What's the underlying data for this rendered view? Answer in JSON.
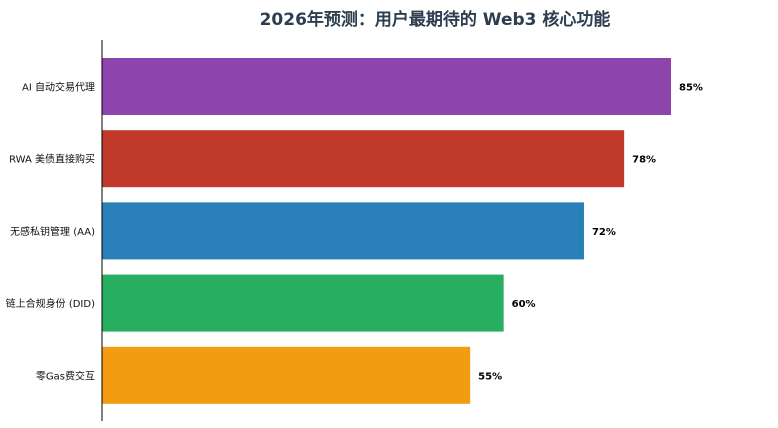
{
  "chart_data": {
    "type": "bar",
    "orientation": "horizontal",
    "title": "2026年预测：用户最期待的 Web3 核心功能",
    "categories": [
      "AI 自动交易代理",
      "RWA 美债直接购买",
      "无感私钥管理 (AA)",
      "链上合规身份 (DID)",
      "零Gas费交互"
    ],
    "values": [
      85,
      78,
      72,
      60,
      55
    ],
    "value_labels": [
      "85%",
      "78%",
      "72%",
      "60%",
      "55%"
    ],
    "colors": [
      "#8e44ad",
      "#c0392b",
      "#2980b9",
      "#27ae60",
      "#f39c12"
    ],
    "xlim": [
      0,
      100
    ],
    "xlabel": "",
    "ylabel": "",
    "grid": false,
    "legend": "none"
  }
}
